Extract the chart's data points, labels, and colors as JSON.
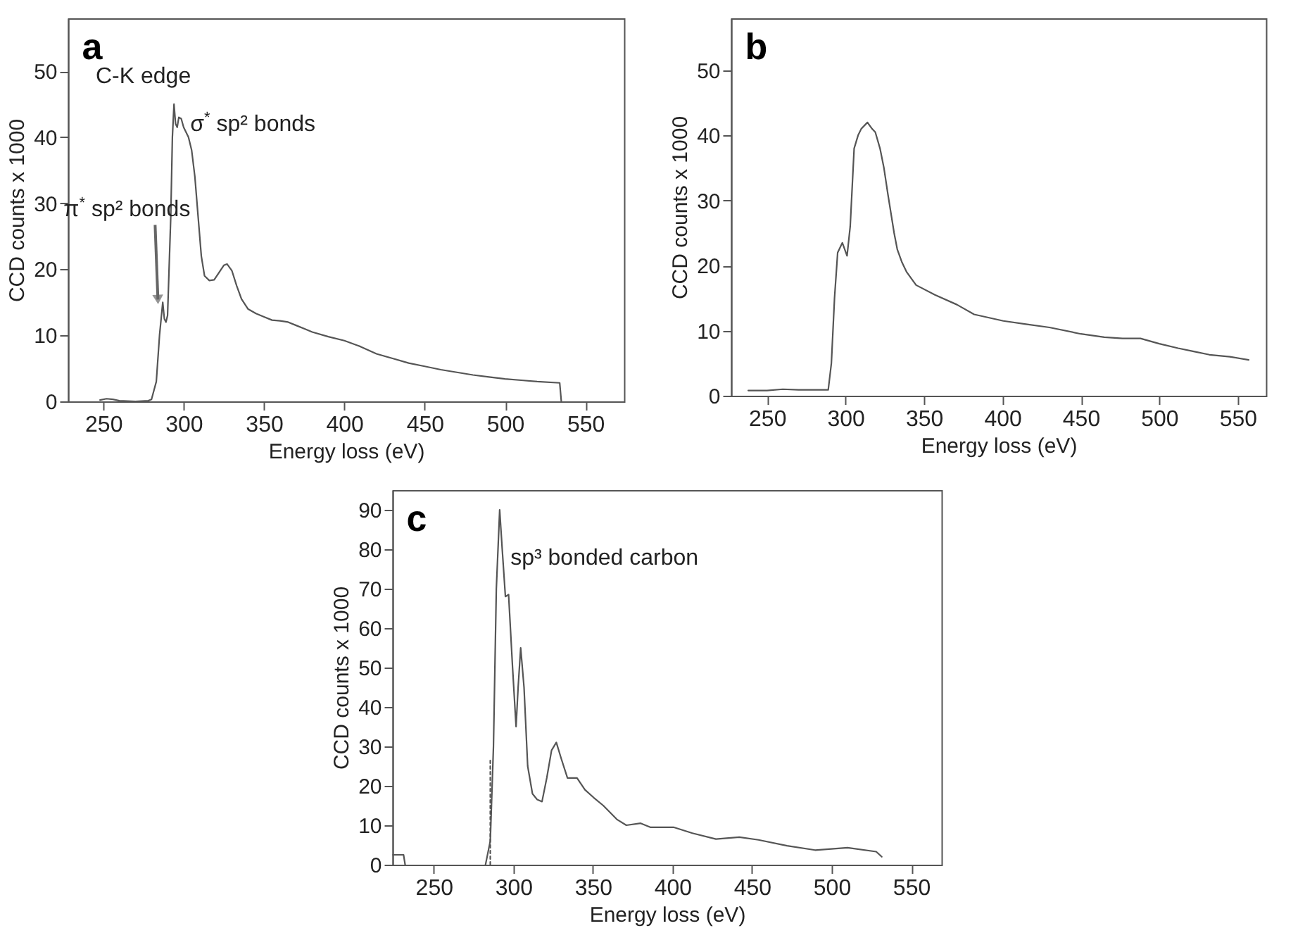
{
  "chart_data": [
    {
      "type": "line",
      "title": "a",
      "xlabel": "Energy loss (eV)",
      "ylabel": "CCD counts  x 1000",
      "xlim": [
        228,
        574
      ],
      "ylim": [
        0,
        58
      ],
      "xticks": [
        250,
        300,
        350,
        400,
        450,
        500,
        550
      ],
      "yticks": [
        0,
        10,
        20,
        30,
        40,
        50
      ],
      "grid": false,
      "marker": "none",
      "line_style": "solid",
      "series": [
        {
          "color": "#555555",
          "x": [
            248,
            252,
            256,
            260,
            270,
            278,
            280,
            283,
            285,
            287,
            288,
            289,
            290,
            292,
            293,
            294,
            295,
            296,
            297,
            298.5,
            300,
            303,
            305,
            307,
            309,
            311,
            313,
            316,
            319,
            322,
            325,
            327,
            330,
            333,
            336,
            340,
            345,
            350,
            355,
            360,
            365,
            370,
            375,
            380,
            390,
            400,
            410,
            420,
            430,
            440,
            450,
            460,
            470,
            480,
            490,
            500,
            510,
            520,
            534,
            535
          ],
          "values": [
            0.2,
            0.4,
            0.3,
            0.1,
            0,
            0.1,
            0.3,
            3,
            10,
            15,
            12.5,
            12,
            13,
            28,
            40,
            45,
            42,
            41.5,
            43,
            42.8,
            41.5,
            40,
            38,
            34,
            28,
            22,
            19,
            18.3,
            18.4,
            19.5,
            20.6,
            20.8,
            19.8,
            17.5,
            15.5,
            14,
            13.3,
            12.8,
            12.3,
            12.2,
            12,
            11.5,
            11,
            10.5,
            9.8,
            9.2,
            8.3,
            7.2,
            6.5,
            5.8,
            5.3,
            4.8,
            4.4,
            4,
            3.7,
            3.4,
            3.2,
            3,
            2.8,
            0
          ]
        }
      ],
      "annotations": [
        "C-K edge",
        "σ$^{*}$ sp² bonds",
        {
          "text": "π$^{*}$ sp² bonds",
          "x": 284,
          "y": 15
        }
      ]
    },
    {
      "type": "line",
      "title": "b",
      "xlabel": "Energy loss (eV)",
      "ylabel": "CCD counts  x 1000",
      "xlim": [
        227,
        568
      ],
      "ylim": [
        0,
        58
      ],
      "xticks": [
        250,
        300,
        350,
        400,
        450,
        500,
        550
      ],
      "yticks": [
        0,
        10,
        20,
        30,
        40,
        50
      ],
      "grid": false,
      "marker": "none",
      "line_style": "solid",
      "series": [
        {
          "color": "#555555",
          "x": [
            238,
            250,
            260,
            270,
            280,
            289,
            291,
            293,
            295,
            298,
            301,
            303,
            305.5,
            308,
            310,
            314,
            317,
            319,
            322,
            324.5,
            327,
            329,
            331,
            333,
            336,
            339,
            345,
            357,
            371,
            382,
            400.6,
            415,
            430,
            450,
            465,
            476.6,
            488,
            500,
            512,
            522,
            532,
            545,
            557
          ],
          "values": [
            0.8,
            0.8,
            1,
            0.9,
            0.9,
            0.9,
            5,
            15,
            22,
            23.5,
            21.5,
            26,
            38,
            40,
            41,
            42,
            41,
            40.5,
            38,
            35,
            31,
            28,
            25,
            22.5,
            20.5,
            19,
            17,
            15.5,
            14,
            12.5,
            11.5,
            11,
            10.5,
            9.5,
            9,
            8.8,
            8.8,
            8,
            7.3,
            6.8,
            6.3,
            6,
            5.5
          ]
        }
      ]
    },
    {
      "type": "line",
      "title": "c",
      "xlabel": "Energy loss (eV)",
      "ylabel": "CCD counts  x 1000",
      "xlim": [
        224,
        569
      ],
      "ylim": [
        0,
        95
      ],
      "xticks": [
        250,
        300,
        350,
        400,
        450,
        500,
        550
      ],
      "yticks": [
        0,
        10,
        20,
        30,
        40,
        50,
        60,
        70,
        80,
        90
      ],
      "grid": false,
      "marker": "none",
      "line_style": "solid",
      "series": [
        {
          "color": "#555555",
          "x": [
            224,
            228,
            231,
            232,
            258,
            282.5,
            285.5,
            287.5,
            289.3,
            291.4,
            293,
            295,
            297,
            299.5,
            301.7,
            303,
            304.6,
            306.7,
            309,
            312,
            315,
            318,
            321,
            324,
            327,
            330,
            334,
            340,
            345,
            350.5,
            356.5,
            365,
            371,
            380,
            386,
            400.6,
            412.5,
            427.3,
            442,
            454,
            472,
            489.6,
            510,
            528,
            531.5
          ],
          "values": [
            2.5,
            2.5,
            2.5,
            0,
            null,
            0,
            6,
            30,
            70,
            90,
            80,
            68,
            68.5,
            50,
            35,
            45,
            55,
            45,
            25,
            18,
            16.5,
            16,
            22,
            29,
            31,
            27,
            22,
            22,
            19,
            17,
            15,
            11.5,
            10,
            10.5,
            9.5,
            9.5,
            8,
            6.5,
            7,
            6.3,
            4.8,
            3.7,
            4.3,
            3.3,
            2
          ]
        },
        {
          "type": "line",
          "color": "#555555",
          "line_style": "dotted",
          "x": [
            285.5,
            285.5
          ],
          "values": [
            0,
            27
          ]
        }
      ],
      "annotations": [
        "sp³ bonded carbon"
      ]
    }
  ]
}
